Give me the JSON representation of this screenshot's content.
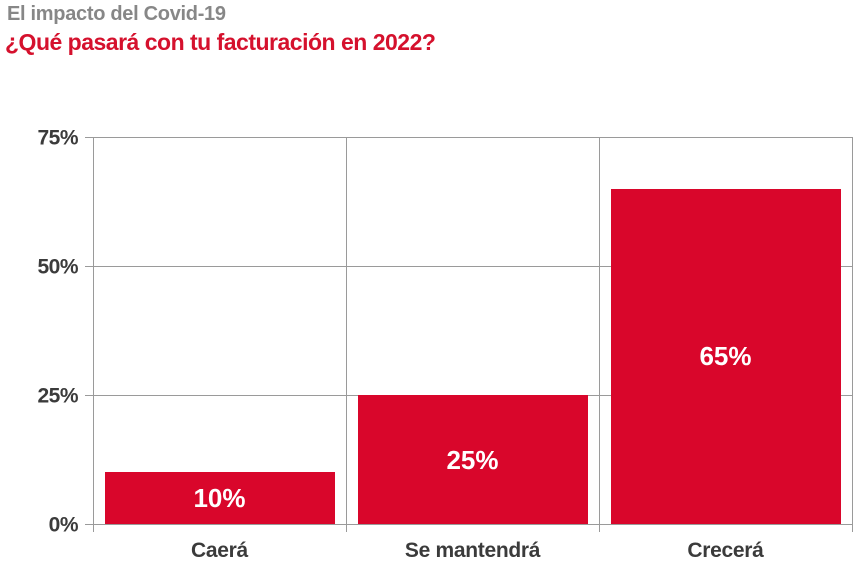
{
  "chart_data": {
    "type": "bar",
    "title": "El impacto del Covid-19",
    "subtitle": "¿Qué pasará con tu facturación en 2022?",
    "categories": [
      "Caerá",
      "Se mantendrá",
      "Crecerá"
    ],
    "values": [
      10,
      25,
      65
    ],
    "value_labels": [
      "10%",
      "25%",
      "65%"
    ],
    "xlabel": "",
    "ylabel": "",
    "ylim": [
      0,
      75
    ],
    "yticks": [
      0,
      25,
      50,
      75
    ],
    "ytick_labels": [
      "0%",
      "25%",
      "50%",
      "75%"
    ],
    "grid": true,
    "legend": false,
    "layout_hint": "single series, gridlines horizontal at each ytick, vertical separators between category panels, value labels centered inside bars",
    "colors": {
      "bar": "#d9062b",
      "bar_label": "#ffffff",
      "subtitle_text": "#d5112d",
      "kicker_text": "#878787",
      "grid": "#9a9a9a",
      "axis_text": "#3b3b3b",
      "background": "#ffffff"
    }
  }
}
